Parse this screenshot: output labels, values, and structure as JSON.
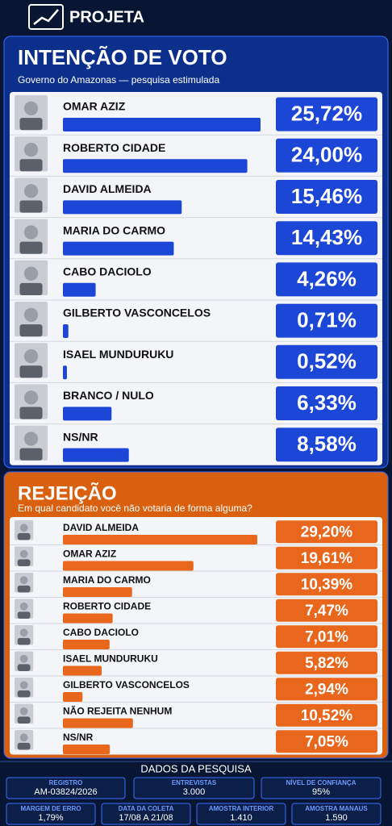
{
  "header": {
    "brand": "PROJETA"
  },
  "chart_data": [
    {
      "type": "bar",
      "orientation": "horizontal",
      "title": "INTENÇÃO DE VOTO",
      "subtitle": "Governo do Amazonas — pesquisa estimulada",
      "categories": [
        "OMAR AZIZ",
        "ROBERTO CIDADE",
        "DAVID ALMEIDA",
        "MARIA DO CARMO",
        "CABO DACIOLO",
        "GILBERTO VASCONCELOS",
        "ISAEL MUNDURUKU",
        "BRANCO / NULO",
        "NS/NR"
      ],
      "values": [
        25.72,
        24.0,
        15.46,
        14.43,
        4.26,
        0.71,
        0.52,
        6.33,
        8.58
      ],
      "value_labels": [
        "25,72%",
        "24,00%",
        "15,46%",
        "14,43%",
        "4,26%",
        "0,71%",
        "0,52%",
        "6,33%",
        "8,58%"
      ],
      "color": "#1c46d6"
    },
    {
      "type": "bar",
      "orientation": "horizontal",
      "title": "REJEIÇÃO",
      "subtitle": "Em qual candidato você não votaria de forma alguma?",
      "categories": [
        "DAVID ALMEIDA",
        "OMAR AZIZ",
        "MARIA DO CARMO",
        "ROBERTO CIDADE",
        "CABO DACIOLO",
        "ISAEL MUNDURUKU",
        "GILBERTO VASCONCELOS",
        "NÃO REJEITA NENHUM",
        "NS/NR"
      ],
      "values": [
        29.2,
        19.61,
        10.39,
        7.47,
        7.01,
        5.82,
        2.94,
        10.52,
        7.05
      ],
      "value_labels": [
        "29,20%",
        "19,61%",
        "10,39%",
        "7,47%",
        "7,01%",
        "5,82%",
        "2,94%",
        "10,52%",
        "7,05%"
      ],
      "color": "#e8671c"
    }
  ],
  "footer": {
    "title": "DADOS DA PESQUISA",
    "items": [
      {
        "label": "REGISTRO",
        "value": "AM-03824/2026"
      },
      {
        "label": "ENTREVISTAS",
        "value": "3.000"
      },
      {
        "label": "NÍVEL DE CONFIANÇA",
        "value": "95%"
      },
      {
        "label": "MARGEM DE ERRO",
        "value": "1,79%"
      },
      {
        "label": "DATA DA COLETA",
        "value": "17/08 A 21/08"
      },
      {
        "label": "AMOSTRA INTERIOR",
        "value": "1.410"
      },
      {
        "label": "AMOSTRA MANAUS",
        "value": "1.590"
      }
    ]
  }
}
